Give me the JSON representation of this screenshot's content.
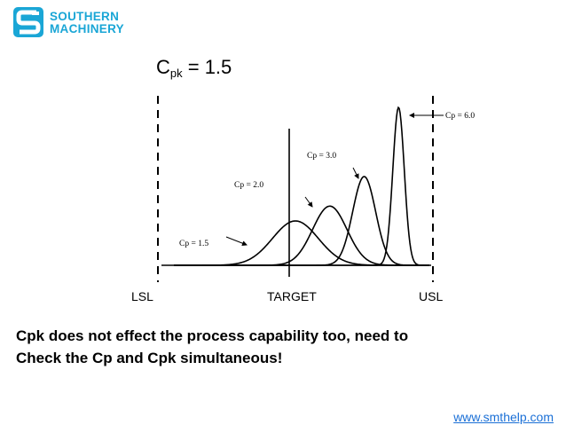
{
  "logo": {
    "line1": "SOUTHERN",
    "line2": "MACHINERY",
    "color": "#1aa6d6"
  },
  "title": {
    "base": "C",
    "subscript": "pk",
    "rest": " = 1.5"
  },
  "diagram": {
    "limits": {
      "lsl": "LSL",
      "target": "TARGET",
      "usl": "USL"
    },
    "curves": [
      {
        "label": "Cp = 1.5",
        "mean": 0,
        "sigma": 1.0
      },
      {
        "label": "Cp = 2.0",
        "mean": 1.5,
        "sigma": 0.75
      },
      {
        "label": "Cp = 3.0",
        "mean": 3.0,
        "sigma": 0.5
      },
      {
        "label": "Cp = 6.0",
        "mean": 4.5,
        "sigma": 0.25
      }
    ],
    "spec_range": [
      -6,
      6
    ]
  },
  "caption": {
    "line1": "Cpk does not effect the process capability too, need to",
    "line2": "Check the Cp and Cpk simultaneous!"
  },
  "website": "www.smthelp.com"
}
